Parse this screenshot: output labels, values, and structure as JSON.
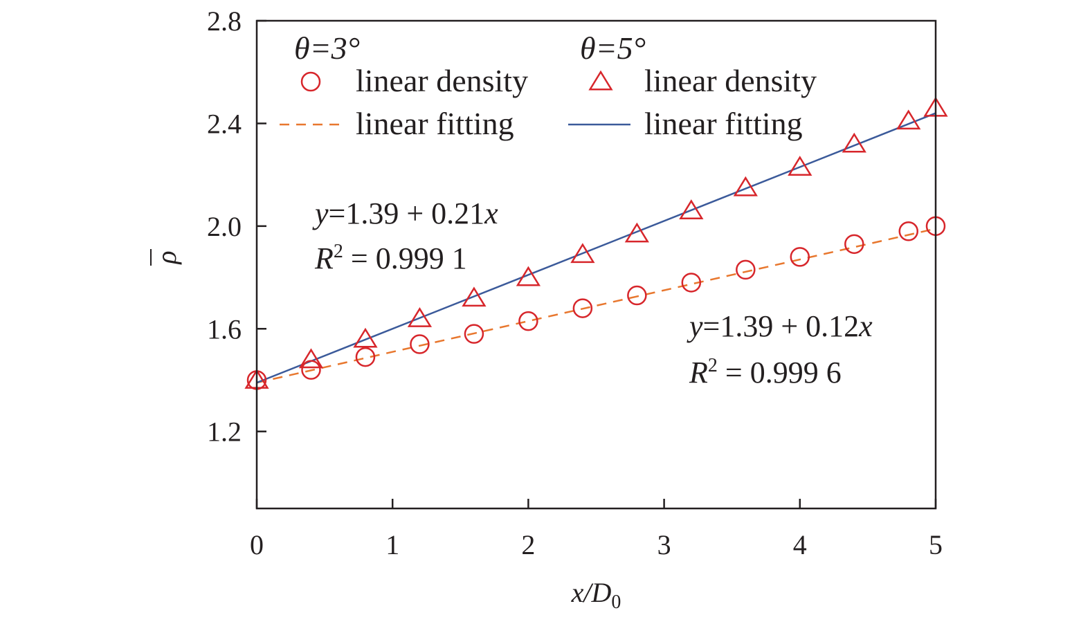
{
  "chart_data": {
    "type": "scatter",
    "xlabel": {
      "main": "x/D",
      "sub": "0"
    },
    "ylabel": "ρ",
    "xlim": [
      0,
      5
    ],
    "ylim": [
      0.9,
      2.8
    ],
    "x_ticks": [
      0,
      1,
      2,
      3,
      4,
      5
    ],
    "x_tick_labels": [
      "0",
      "1",
      "2",
      "3",
      "4",
      "5"
    ],
    "y_ticks": [
      1.2,
      1.6,
      2.0,
      2.4,
      2.8
    ],
    "y_tick_labels": [
      "1.2",
      "1.6",
      "2.0",
      "2.4",
      "2.8"
    ],
    "grid": false,
    "legend_position": "top-left",
    "legend": {
      "groups": [
        {
          "title": "θ=3°",
          "points_label": "linear density",
          "fit_label": "linear fitting"
        },
        {
          "title": "θ=5°",
          "points_label": "linear density",
          "fit_label": "linear fitting"
        }
      ]
    },
    "series": [
      {
        "group": "θ=3°",
        "kind": "points",
        "marker": "circle",
        "color": "#d7262b",
        "x": [
          0,
          0.4,
          0.8,
          1.2,
          1.6,
          2.0,
          2.4,
          2.8,
          3.2,
          3.6,
          4.0,
          4.4,
          4.8,
          5.0
        ],
        "y": [
          1.4,
          1.44,
          1.49,
          1.54,
          1.58,
          1.63,
          1.68,
          1.73,
          1.78,
          1.83,
          1.88,
          1.93,
          1.98,
          2.0
        ]
      },
      {
        "group": "θ=3°",
        "kind": "fit",
        "line_style": "dashed",
        "color": "#e8772e",
        "intercept": 1.39,
        "slope": 0.12,
        "equation": "y=1.39 + 0.12x",
        "r_squared": "R² = 0.999 6"
      },
      {
        "group": "θ=5°",
        "kind": "points",
        "marker": "triangle",
        "color": "#d7262b",
        "x": [
          0,
          0.4,
          0.8,
          1.2,
          1.6,
          2.0,
          2.4,
          2.8,
          3.2,
          3.6,
          4.0,
          4.4,
          4.8,
          5.0
        ],
        "y": [
          1.4,
          1.48,
          1.56,
          1.64,
          1.72,
          1.8,
          1.89,
          1.97,
          2.06,
          2.15,
          2.23,
          2.32,
          2.41,
          2.46
        ]
      },
      {
        "group": "θ=5°",
        "kind": "fit",
        "line_style": "solid",
        "color": "#3b5a9a",
        "intercept": 1.39,
        "slope": 0.21,
        "equation": "y=1.39 + 0.21x",
        "r_squared": "R² = 0.999 1"
      }
    ]
  }
}
